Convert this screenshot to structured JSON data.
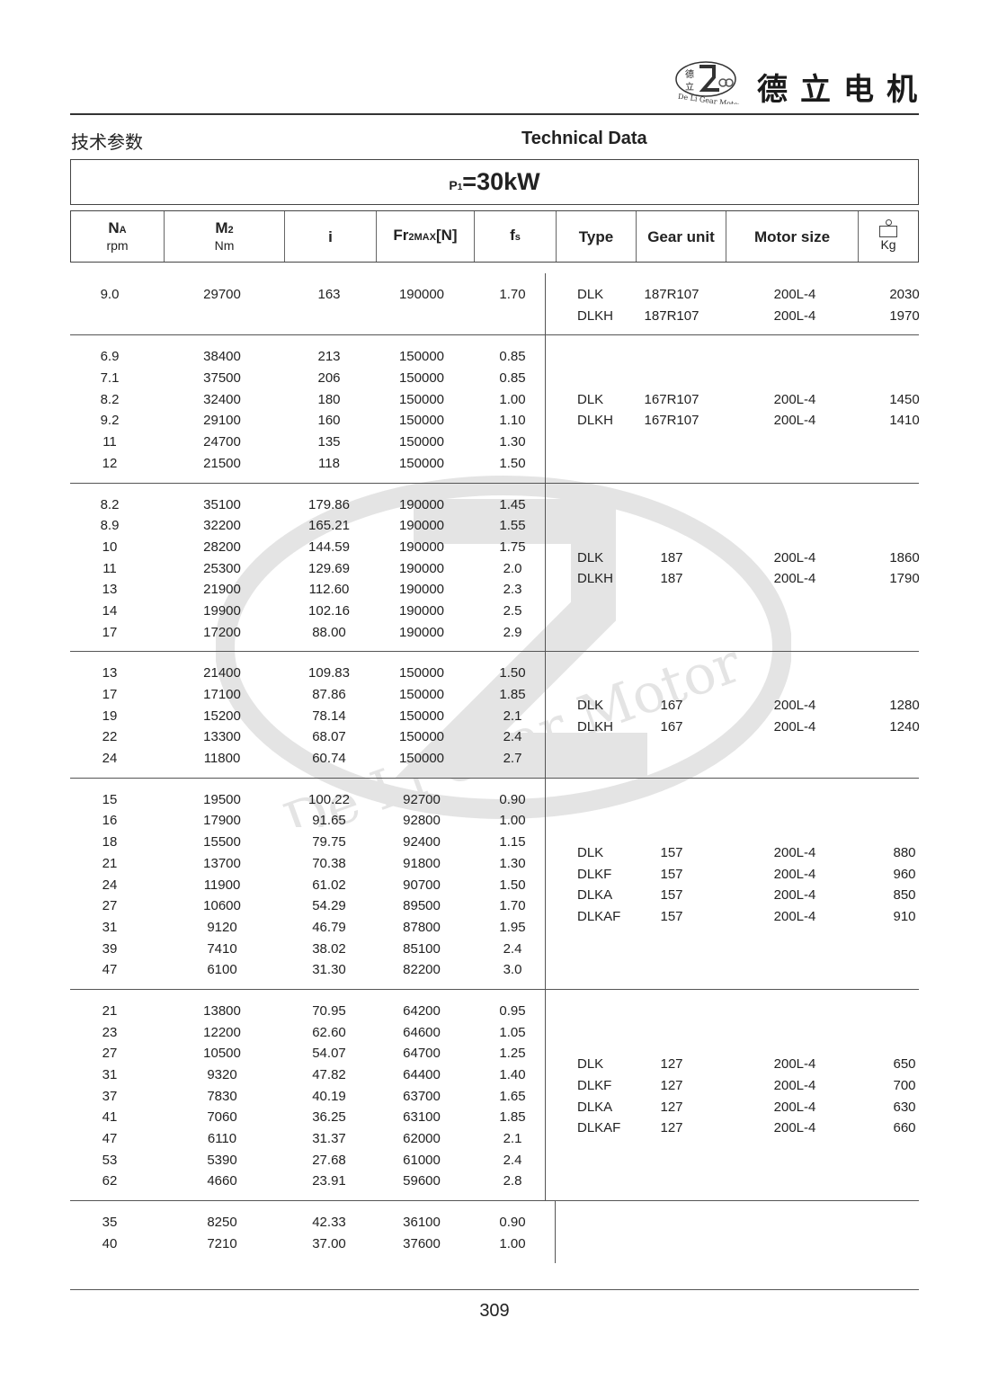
{
  "header": {
    "brand_cn": "德立电机",
    "logo_text": "De Li Gear Motor",
    "logo_chars": "德立"
  },
  "title_cn": "技术参数",
  "title_en": "Technical Data",
  "power": {
    "prefix": "P",
    "sub": "1",
    "value": "=30kW"
  },
  "columns": {
    "na": "N",
    "na_sub": "A",
    "na_unit": "rpm",
    "m2": "M",
    "m2_sub": "2",
    "m2_unit": "Nm",
    "i": "i",
    "fr": "Fr",
    "fr_sub": "2MAX",
    "fr_unit": "[N]",
    "fs": "f",
    "fs_sub": "s",
    "type": "Type",
    "gear_unit": "Gear unit",
    "motor_size": "Motor size",
    "kg": "Kg",
    "kg_icon": "weight-icon"
  },
  "groups": [
    {
      "rows": [
        [
          "9.0",
          "29700",
          "163",
          "190000",
          "1.70"
        ]
      ],
      "types": [
        [
          "DLK",
          "187R107",
          "200L-4",
          "2030"
        ],
        [
          "DLKH",
          "187R107",
          "200L-4",
          "1970"
        ]
      ]
    },
    {
      "rows": [
        [
          "6.9",
          "38400",
          "213",
          "150000",
          "0.85"
        ],
        [
          "7.1",
          "37500",
          "206",
          "150000",
          "0.85"
        ],
        [
          "8.2",
          "32400",
          "180",
          "150000",
          "1.00"
        ],
        [
          "9.2",
          "29100",
          "160",
          "150000",
          "1.10"
        ],
        [
          "11",
          "24700",
          "135",
          "150000",
          "1.30"
        ],
        [
          "12",
          "21500",
          "118",
          "150000",
          "1.50"
        ]
      ],
      "types": [
        [
          "DLK",
          "167R107",
          "200L-4",
          "1450"
        ],
        [
          "DLKH",
          "167R107",
          "200L-4",
          "1410"
        ]
      ]
    },
    {
      "rows": [
        [
          "8.2",
          "35100",
          "179.86",
          "190000",
          "1.45"
        ],
        [
          "8.9",
          "32200",
          "165.21",
          "190000",
          "1.55"
        ],
        [
          "10",
          "28200",
          "144.59",
          "190000",
          "1.75"
        ],
        [
          "11",
          "25300",
          "129.69",
          "190000",
          "2.0"
        ],
        [
          "13",
          "21900",
          "112.60",
          "190000",
          "2.3"
        ],
        [
          "14",
          "19900",
          "102.16",
          "190000",
          "2.5"
        ],
        [
          "17",
          "17200",
          "88.00",
          "190000",
          "2.9"
        ]
      ],
      "types": [
        [
          "DLK",
          "187",
          "200L-4",
          "1860"
        ],
        [
          "DLKH",
          "187",
          "200L-4",
          "1790"
        ]
      ]
    },
    {
      "rows": [
        [
          "13",
          "21400",
          "109.83",
          "150000",
          "1.50"
        ],
        [
          "17",
          "17100",
          "87.86",
          "150000",
          "1.85"
        ],
        [
          "19",
          "15200",
          "78.14",
          "150000",
          "2.1"
        ],
        [
          "22",
          "13300",
          "68.07",
          "150000",
          "2.4"
        ],
        [
          "24",
          "11800",
          "60.74",
          "150000",
          "2.7"
        ]
      ],
      "types": [
        [
          "DLK",
          "167",
          "200L-4",
          "1280"
        ],
        [
          "DLKH",
          "167",
          "200L-4",
          "1240"
        ]
      ]
    },
    {
      "rows": [
        [
          "15",
          "19500",
          "100.22",
          "92700",
          "0.90"
        ],
        [
          "16",
          "17900",
          "91.65",
          "92800",
          "1.00"
        ],
        [
          "18",
          "15500",
          "79.75",
          "92400",
          "1.15"
        ],
        [
          "21",
          "13700",
          "70.38",
          "91800",
          "1.30"
        ],
        [
          "24",
          "11900",
          "61.02",
          "90700",
          "1.50"
        ],
        [
          "27",
          "10600",
          "54.29",
          "89500",
          "1.70"
        ],
        [
          "31",
          "9120",
          "46.79",
          "87800",
          "1.95"
        ],
        [
          "39",
          "7410",
          "38.02",
          "85100",
          "2.4"
        ],
        [
          "47",
          "6100",
          "31.30",
          "82200",
          "3.0"
        ]
      ],
      "types": [
        [
          "DLK",
          "157",
          "200L-4",
          "880"
        ],
        [
          "DLKF",
          "157",
          "200L-4",
          "960"
        ],
        [
          "DLKA",
          "157",
          "200L-4",
          "850"
        ],
        [
          "DLKAF",
          "157",
          "200L-4",
          "910"
        ]
      ]
    },
    {
      "rows": [
        [
          "21",
          "13800",
          "70.95",
          "64200",
          "0.95"
        ],
        [
          "23",
          "12200",
          "62.60",
          "64600",
          "1.05"
        ],
        [
          "27",
          "10500",
          "54.07",
          "64700",
          "1.25"
        ],
        [
          "31",
          "9320",
          "47.82",
          "64400",
          "1.40"
        ],
        [
          "37",
          "7830",
          "40.19",
          "63700",
          "1.65"
        ],
        [
          "41",
          "7060",
          "36.25",
          "63100",
          "1.85"
        ],
        [
          "47",
          "6110",
          "31.37",
          "62000",
          "2.1"
        ],
        [
          "53",
          "5390",
          "27.68",
          "61000",
          "2.4"
        ],
        [
          "62",
          "4660",
          "23.91",
          "59600",
          "2.8"
        ]
      ],
      "types": [
        [
          "DLK",
          "127",
          "200L-4",
          "650"
        ],
        [
          "DLKF",
          "127",
          "200L-4",
          "700"
        ],
        [
          "DLKA",
          "127",
          "200L-4",
          "630"
        ],
        [
          "DLKAF",
          "127",
          "200L-4",
          "660"
        ]
      ]
    },
    {
      "rows": [
        [
          "35",
          "8250",
          "42.33",
          "36100",
          "0.90"
        ],
        [
          "40",
          "7210",
          "37.00",
          "37600",
          "1.00"
        ]
      ],
      "types": []
    }
  ],
  "page_number": "309"
}
